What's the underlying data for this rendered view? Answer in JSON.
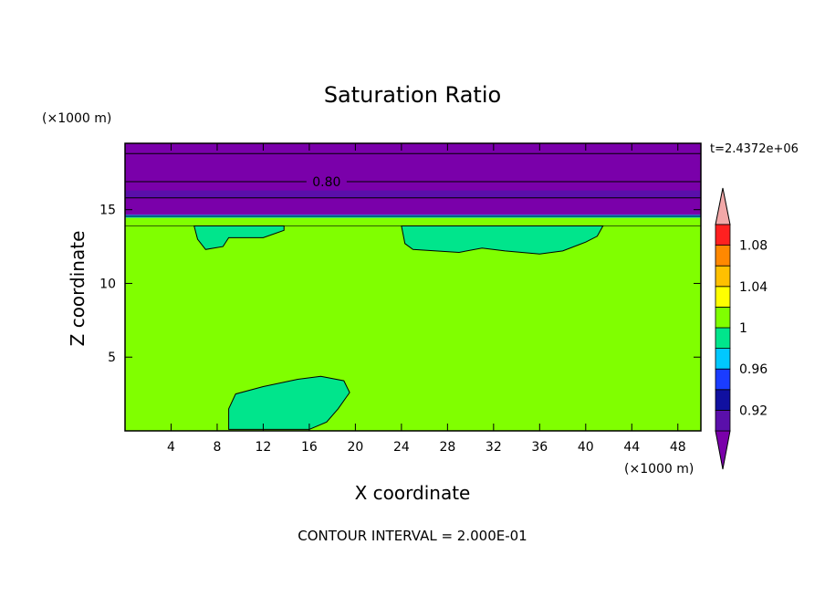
{
  "chart_data": {
    "type": "heatmap",
    "title": "Saturation Ratio",
    "xlabel": "X coordinate",
    "ylabel": "Z coordinate",
    "x_unit": "(×1000 m)",
    "y_unit": "(×1000 m)",
    "time_label": "t=2.4372e+06",
    "footer": "CONTOUR INTERVAL = 2.000E-01",
    "xlim": [
      0,
      50
    ],
    "ylim": [
      0,
      19.5
    ],
    "x_ticks": [
      4,
      8,
      12,
      16,
      20,
      24,
      28,
      32,
      36,
      40,
      44,
      48
    ],
    "y_ticks": [
      5,
      10,
      15
    ],
    "contour_labels": [
      {
        "text": "0.80",
        "x": 17.5,
        "z": 16.9
      }
    ],
    "colorbar": {
      "levels": [
        0.9,
        0.92,
        0.94,
        0.96,
        0.98,
        1.0,
        1.02,
        1.04,
        1.06,
        1.08,
        1.1
      ],
      "labeled_ticks": [
        "0.92",
        "0.96",
        "1",
        "1.04",
        "1.08"
      ],
      "colors": [
        "#5a0faa",
        "#1010a0",
        "#1a3cff",
        "#00c8ff",
        "#00e58c",
        "#80ff00",
        "#ffff00",
        "#ffc000",
        "#ff8800",
        "#ff2020",
        "#f2a8a8"
      ],
      "under_color": "#7a00aa",
      "over_color": "#f2a8a8"
    },
    "fields": {
      "background": {
        "value": 1.0,
        "color": "#80ff00"
      },
      "stratosphere": {
        "z_range": [
          14.5,
          19.5
        ],
        "value": "< 0.9",
        "color": "#7a00aa"
      },
      "inversion_band": {
        "z_range": [
          15.8,
          16.3
        ],
        "value": "0.90-0.92",
        "color": "#5a0faa"
      },
      "transition_line": {
        "z": 14.55,
        "color": "#00c8ff"
      },
      "moist_regions": [
        {
          "name": "upper-left-cloud",
          "value": "0.98-1.00",
          "color": "#00e58c",
          "outline": [
            [
              6,
              13.9
            ],
            [
              13.8,
              13.9
            ],
            [
              13.8,
              13.6
            ],
            [
              12,
              13.1
            ],
            [
              9,
              13.1
            ],
            [
              8.5,
              12.5
            ],
            [
              7,
              12.3
            ],
            [
              6.3,
              13
            ],
            [
              6,
              13.9
            ]
          ]
        },
        {
          "name": "upper-middle-cloud",
          "value": "0.98-1.00",
          "color": "#00e58c",
          "outline": [
            [
              24,
              13.9
            ],
            [
              41.5,
              13.9
            ],
            [
              41,
              13.2
            ],
            [
              40,
              12.8
            ],
            [
              38,
              12.2
            ],
            [
              36,
              12
            ],
            [
              33,
              12.2
            ],
            [
              31,
              12.4
            ],
            [
              29,
              12.1
            ],
            [
              27,
              12.2
            ],
            [
              25,
              12.3
            ],
            [
              24.3,
              12.7
            ],
            [
              24,
              13.9
            ]
          ]
        },
        {
          "name": "lower-left-cloud",
          "value": "0.98-1.00",
          "color": "#00e58c",
          "outline": [
            [
              9,
              0.1
            ],
            [
              9,
              1.5
            ],
            [
              9.6,
              2.5
            ],
            [
              12,
              3.0
            ],
            [
              15,
              3.5
            ],
            [
              17,
              3.7
            ],
            [
              19,
              3.4
            ],
            [
              19.5,
              2.6
            ],
            [
              18.5,
              1.5
            ],
            [
              17.5,
              0.6
            ],
            [
              16,
              0.1
            ]
          ]
        }
      ]
    }
  }
}
